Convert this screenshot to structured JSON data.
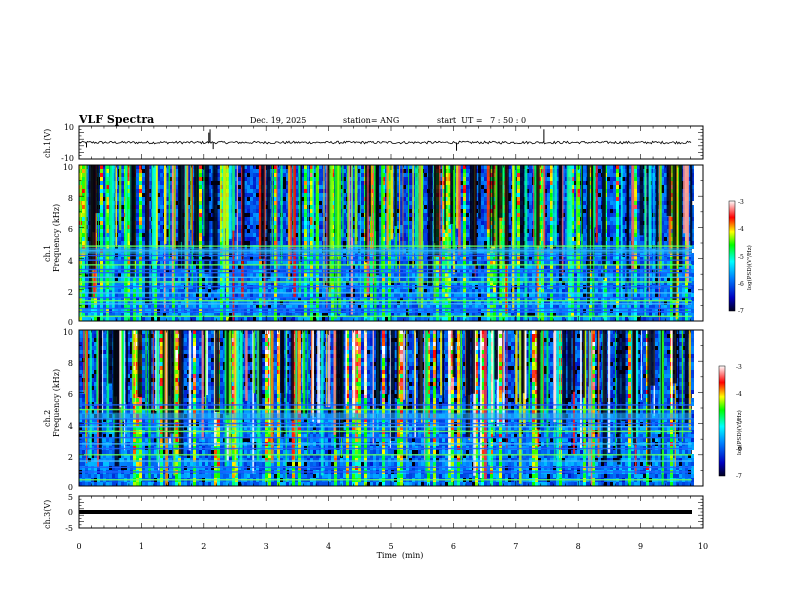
{
  "chart_data": {
    "type": "heatmap",
    "title": "VLF Spectra",
    "date": "Dec. 19, 2025",
    "station": "station= ANG",
    "start_ut": "start  UT =   7 : 50 : 0",
    "xlabel": "Time  (min)",
    "xlim": [
      0,
      10
    ],
    "x_ticks": [
      "0",
      "1",
      "2",
      "3",
      "4",
      "5",
      "6",
      "7",
      "8",
      "9",
      "10"
    ],
    "data_end_min": 9.82,
    "panels": [
      {
        "id": "ch1-waveform",
        "type": "line",
        "ylabel": "ch.1(V)",
        "ylim": [
          -10,
          10
        ],
        "y_ticks": [
          "10",
          "-10"
        ],
        "baseline": 0,
        "noise_amplitude": 0.8,
        "spikes": [
          {
            "t": 0.12,
            "v": -3
          },
          {
            "t": 2.1,
            "v": 8
          },
          {
            "t": 2.15,
            "v": -4
          },
          {
            "t": 2.08,
            "v": 6
          },
          {
            "t": 6.05,
            "v": -5
          },
          {
            "t": 7.45,
            "v": 8
          }
        ]
      },
      {
        "id": "ch1-spectrogram",
        "type": "heatmap",
        "ylabel_1": "ch.1",
        "ylabel_2": "Frequency  (kHz)",
        "ylim": [
          0,
          10
        ],
        "y_ticks": [
          "0",
          "2",
          "4",
          "6",
          "8",
          "10"
        ],
        "colorbar_label": "log(PSD)(V²/Hz)",
        "colorbar_range": [
          -7,
          -3
        ],
        "colorbar_ticks": [
          "-3",
          "-4",
          "-5",
          "-6",
          "-7"
        ],
        "line_freqs_khz": [
          0.3,
          0.6,
          0.8,
          1.1,
          1.3,
          1.5,
          1.8,
          2.2,
          2.5,
          2.8,
          3.1,
          3.3,
          3.6,
          3.9,
          4.2,
          4.5,
          4.8
        ]
      },
      {
        "id": "ch2-spectrogram",
        "type": "heatmap",
        "ylabel_1": "ch.2",
        "ylabel_2": "Frequency  (kHz)",
        "ylim": [
          0,
          10
        ],
        "y_ticks": [
          "0",
          "2",
          "4",
          "6",
          "8",
          "10"
        ],
        "colorbar_label": "log(PSD)(V²/Hz)",
        "colorbar_range": [
          -7,
          -3
        ],
        "colorbar_ticks": [
          "-3",
          "-4",
          "-5",
          "-6",
          "-7"
        ],
        "line_freqs_khz": [
          0.4,
          0.9,
          1.2,
          1.6,
          2.0,
          2.4,
          2.7,
          3.1,
          3.5,
          3.8,
          4.0,
          4.3,
          4.9,
          5.2
        ]
      },
      {
        "id": "ch3-waveform",
        "type": "line",
        "ylabel": "ch.3(V)",
        "ylim": [
          -5,
          5
        ],
        "y_ticks": [
          "5",
          "0",
          "-5"
        ],
        "level": 0,
        "note": "flat thick trace"
      }
    ]
  },
  "colors": {
    "background": "#000000",
    "axis": "#000000",
    "colormap": [
      "#000040",
      "#0000ff",
      "#00a0ff",
      "#00ffff",
      "#00ff00",
      "#ffff00",
      "#ff8000",
      "#ff0000",
      "#ffffff"
    ]
  }
}
